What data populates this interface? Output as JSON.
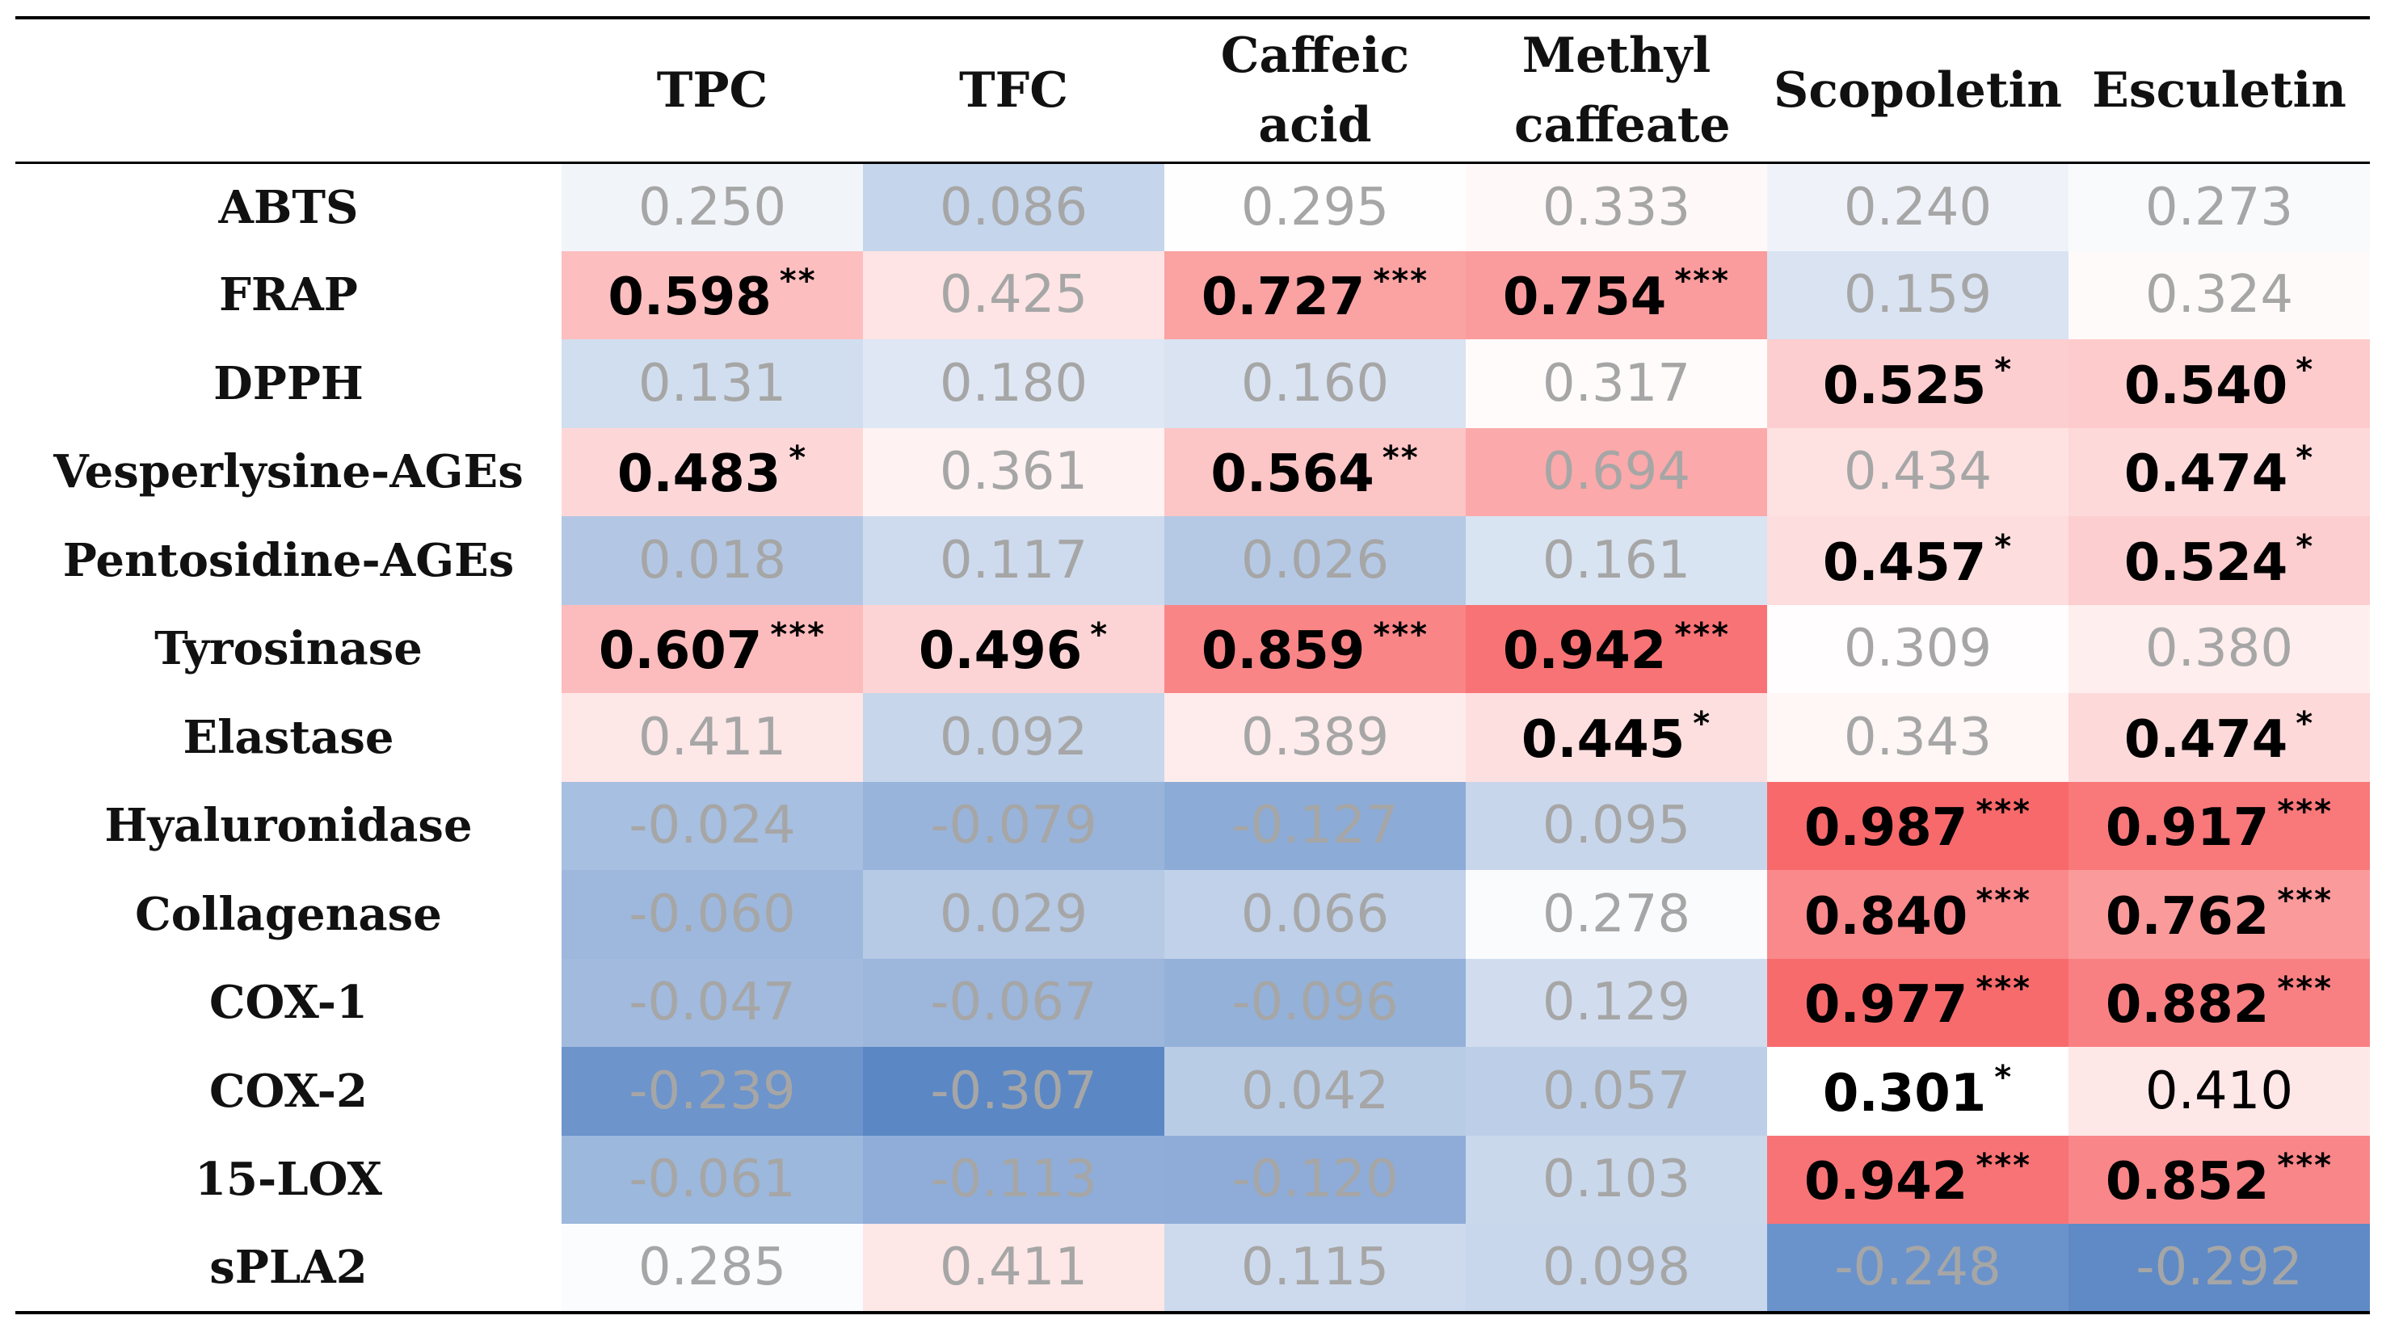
{
  "chart_data": {
    "type": "heatmap",
    "title": "",
    "columns": [
      "TPC",
      "TFC",
      "Caffeic acid",
      "Methyl caffeate",
      "Scopoletin",
      "Esculetin"
    ],
    "rows": [
      "ABTS",
      "FRAP",
      "DPPH",
      "Vesperlysine-AGEs",
      "Pentosidine-AGEs",
      "Tyrosinase",
      "Elastase",
      "Hyaluronidase",
      "Collagenase",
      "COX-1",
      "COX-2",
      "15-LOX",
      "sPLA2"
    ],
    "values": [
      [
        0.25,
        0.086,
        0.295,
        0.333,
        0.24,
        0.273
      ],
      [
        0.598,
        0.425,
        0.727,
        0.754,
        0.159,
        0.324
      ],
      [
        0.131,
        0.18,
        0.16,
        0.317,
        0.525,
        0.54
      ],
      [
        0.483,
        0.361,
        0.564,
        0.694,
        0.434,
        0.474
      ],
      [
        0.018,
        0.117,
        0.026,
        0.161,
        0.457,
        0.524
      ],
      [
        0.607,
        0.496,
        0.859,
        0.942,
        0.309,
        0.38
      ],
      [
        0.411,
        0.092,
        0.389,
        0.445,
        0.343,
        0.474
      ],
      [
        -0.024,
        -0.079,
        -0.127,
        0.095,
        0.987,
        0.917
      ],
      [
        -0.06,
        0.029,
        0.066,
        0.278,
        0.84,
        0.762
      ],
      [
        -0.047,
        -0.067,
        -0.096,
        0.129,
        0.977,
        0.882
      ],
      [
        -0.239,
        -0.307,
        0.042,
        0.057,
        0.301,
        0.41
      ],
      [
        -0.061,
        -0.113,
        -0.12,
        0.103,
        0.942,
        0.852
      ],
      [
        0.285,
        0.411,
        0.115,
        0.098,
        -0.248,
        -0.292
      ]
    ],
    "significance": [
      [
        "",
        "",
        "",
        "",
        "",
        ""
      ],
      [
        "**",
        "",
        "***",
        "***",
        "",
        ""
      ],
      [
        "",
        "",
        "",
        "",
        "*",
        "*"
      ],
      [
        "*",
        "",
        "**",
        "",
        "",
        "*"
      ],
      [
        "",
        "",
        "",
        "",
        "*",
        "*"
      ],
      [
        "***",
        "*",
        "***",
        "***",
        "",
        ""
      ],
      [
        "",
        "",
        "",
        "*",
        "",
        "*"
      ],
      [
        "",
        "",
        "",
        "",
        "***",
        "***"
      ],
      [
        "",
        "",
        "",
        "",
        "***",
        "***"
      ],
      [
        "",
        "",
        "",
        "",
        "***",
        "***"
      ],
      [
        "",
        "",
        "",
        "",
        "*",
        ""
      ],
      [
        "",
        "",
        "",
        "",
        "***",
        "***"
      ],
      [
        "",
        "",
        "",
        "",
        "",
        ""
      ]
    ],
    "color_scale": {
      "negative": "#5b87c5",
      "neutral": "#ffffff",
      "positive": "#f8696b",
      "text_significant": "#000000",
      "text_not_significant": "#a6a6a6"
    }
  }
}
